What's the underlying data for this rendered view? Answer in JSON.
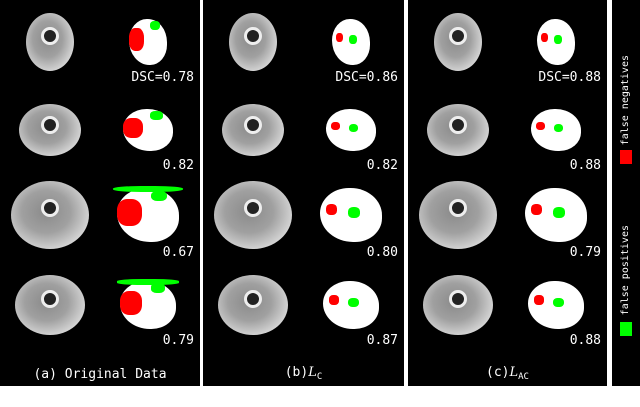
{
  "panels": [
    {
      "caption": "(a) Original Data",
      "dsc": [
        "DSC=0.78",
        "0.82",
        "0.67",
        "0.79"
      ]
    },
    {
      "caption_prefix": "(b)",
      "caption_symbol": "L",
      "caption_sub": "C",
      "dsc": [
        "DSC=0.86",
        "0.82",
        "0.80",
        "0.87"
      ]
    },
    {
      "caption_prefix": "(c)",
      "caption_symbol": "L",
      "caption_sub": "AC",
      "dsc": [
        "DSC=0.88",
        "0.88",
        "0.79",
        "0.88"
      ]
    }
  ],
  "legend": {
    "false_negatives": "false negatives",
    "false_positives": "false positives",
    "fn_color": "#ff0000",
    "fp_color": "#00ff00"
  }
}
